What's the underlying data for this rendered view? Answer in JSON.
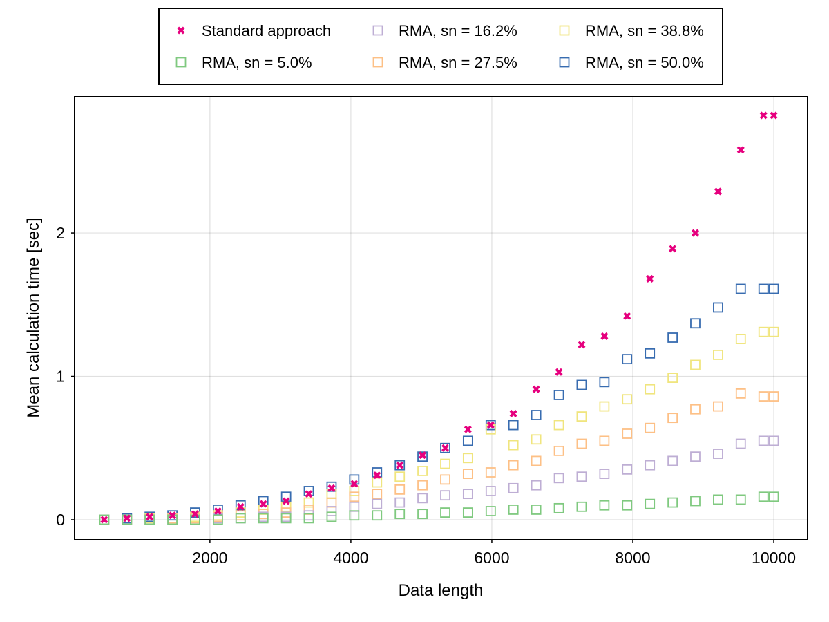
{
  "chart_data": {
    "type": "scatter",
    "title": "",
    "xlabel": "Data length",
    "ylabel": "Mean calculation time [sec]",
    "xlim": [
      80,
      10480
    ],
    "ylim": [
      -0.14,
      2.95
    ],
    "xticks": [
      2000,
      4000,
      6000,
      8000,
      10000
    ],
    "xtick_labels": [
      "2000",
      "4000",
      "6000",
      "8000",
      "10000"
    ],
    "yticks": [
      0,
      1,
      2
    ],
    "ytick_labels": [
      "0",
      "1",
      "2"
    ],
    "grid": true,
    "legend_position": "top-outside",
    "x": [
      500,
      823,
      1145,
      1468,
      1790,
      2113,
      2435,
      2758,
      3081,
      3403,
      3726,
      4048,
      4371,
      4694,
      5016,
      5339,
      5661,
      5984,
      6306,
      6629,
      6952,
      7274,
      7597,
      7919,
      8242,
      8565,
      8887,
      9210,
      9532,
      9855,
      10000
    ],
    "series": [
      {
        "name": "Standard approach",
        "marker": "x",
        "color": "#e6007e",
        "values": [
          0.0,
          0.01,
          0.02,
          0.03,
          0.04,
          0.06,
          0.09,
          0.11,
          0.13,
          0.18,
          0.22,
          0.25,
          0.31,
          0.38,
          0.45,
          0.5,
          0.63,
          0.66,
          0.74,
          0.91,
          1.03,
          1.22,
          1.28,
          1.42,
          1.68,
          1.89,
          2.0,
          2.29,
          2.58,
          2.82,
          2.82
        ]
      },
      {
        "name": "RMA, sn = 5.0%",
        "marker": "square",
        "color": "#7fc97f",
        "values": [
          0.0,
          0.0,
          0.0,
          0.0,
          0.0,
          0.0,
          0.01,
          0.01,
          0.01,
          0.01,
          0.02,
          0.03,
          0.03,
          0.04,
          0.04,
          0.05,
          0.05,
          0.06,
          0.07,
          0.07,
          0.08,
          0.09,
          0.1,
          0.1,
          0.11,
          0.12,
          0.13,
          0.14,
          0.14,
          0.16,
          0.16
        ]
      },
      {
        "name": "RMA, sn = 16.2%",
        "marker": "square",
        "color": "#beaed4",
        "values": [
          0.0,
          0.0,
          0.0,
          0.0,
          0.0,
          0.01,
          0.01,
          0.02,
          0.02,
          0.03,
          0.06,
          0.09,
          0.11,
          0.12,
          0.15,
          0.17,
          0.18,
          0.2,
          0.22,
          0.24,
          0.29,
          0.3,
          0.32,
          0.35,
          0.38,
          0.41,
          0.44,
          0.46,
          0.53,
          0.55,
          0.55
        ]
      },
      {
        "name": "RMA, sn = 27.5%",
        "marker": "square",
        "color": "#fdc086",
        "values": [
          0.0,
          0.0,
          0.0,
          0.01,
          0.01,
          0.02,
          0.03,
          0.04,
          0.05,
          0.07,
          0.12,
          0.16,
          0.18,
          0.21,
          0.24,
          0.28,
          0.32,
          0.33,
          0.38,
          0.41,
          0.48,
          0.53,
          0.55,
          0.6,
          0.64,
          0.71,
          0.77,
          0.79,
          0.88,
          0.86,
          0.86
        ]
      },
      {
        "name": "RMA, sn = 38.8%",
        "marker": "square",
        "color": "#f0e57e",
        "values": [
          0.0,
          0.0,
          0.01,
          0.01,
          0.02,
          0.03,
          0.05,
          0.07,
          0.09,
          0.12,
          0.18,
          0.2,
          0.26,
          0.3,
          0.34,
          0.39,
          0.43,
          0.63,
          0.52,
          0.56,
          0.66,
          0.72,
          0.79,
          0.84,
          0.91,
          0.99,
          1.08,
          1.15,
          1.26,
          1.31,
          1.31
        ]
      },
      {
        "name": "RMA, sn = 50.0%",
        "marker": "square",
        "color": "#386cb0",
        "values": [
          0.0,
          0.01,
          0.02,
          0.03,
          0.05,
          0.07,
          0.1,
          0.13,
          0.16,
          0.2,
          0.23,
          0.28,
          0.33,
          0.38,
          0.44,
          0.5,
          0.55,
          0.66,
          0.66,
          0.73,
          0.87,
          0.94,
          0.96,
          1.12,
          1.16,
          1.27,
          1.37,
          1.48,
          1.61,
          1.61,
          1.61
        ]
      }
    ]
  }
}
